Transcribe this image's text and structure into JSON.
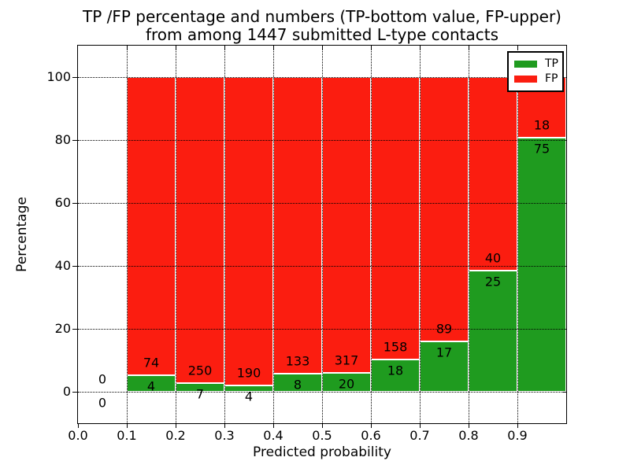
{
  "figure": {
    "title_line1": "TP /FP percentage and numbers (TP-bottom value, FP-upper)",
    "title_line2": "from among 1447 submitted L-type contacts",
    "xlabel": "Predicted probability",
    "ylabel": "Percentage"
  },
  "legend": {
    "position": "upper right",
    "items": [
      {
        "label": "TP",
        "color": "#1f9b1f"
      },
      {
        "label": "FP",
        "color": "#fb1d10"
      }
    ]
  },
  "chart_data": {
    "type": "bar",
    "stacked": true,
    "normalized_to_percent": true,
    "title": "TP /FP percentage and numbers (TP-bottom value, FP-upper) from among 1447 submitted L-type contacts",
    "xlabel": "Predicted probability",
    "ylabel": "Percentage",
    "total_contacts": 1447,
    "xlim": [
      0.0,
      1.0
    ],
    "ylim": [
      -10,
      110
    ],
    "grid": true,
    "grid_style": "dotted",
    "legend_position": "upper right",
    "series": [
      {
        "name": "TP",
        "color": "#1f9b1f",
        "position": "bottom"
      },
      {
        "name": "FP",
        "color": "#fb1d10",
        "position": "top"
      }
    ],
    "xticks": [
      {
        "v": 0.0,
        "label": "0.0"
      },
      {
        "v": 0.1,
        "label": "0.1"
      },
      {
        "v": 0.2,
        "label": "0.2"
      },
      {
        "v": 0.3,
        "label": "0.3"
      },
      {
        "v": 0.4,
        "label": "0.4"
      },
      {
        "v": 0.5,
        "label": "0.5"
      },
      {
        "v": 0.6,
        "label": "0.6"
      },
      {
        "v": 0.7,
        "label": "0.7"
      },
      {
        "v": 0.8,
        "label": "0.8"
      },
      {
        "v": 0.9,
        "label": "0.9"
      }
    ],
    "yticks": [
      {
        "v": 0,
        "label": "0"
      },
      {
        "v": 20,
        "label": "20"
      },
      {
        "v": 40,
        "label": "40"
      },
      {
        "v": 60,
        "label": "60"
      },
      {
        "v": 80,
        "label": "80"
      },
      {
        "v": 100,
        "label": "100"
      }
    ],
    "bins": [
      {
        "x0": 0.0,
        "x1": 0.1,
        "tp": 0,
        "fp": 0,
        "tp_pct": 0.0
      },
      {
        "x0": 0.1,
        "x1": 0.2,
        "tp": 4,
        "fp": 74,
        "tp_pct": 5.1
      },
      {
        "x0": 0.2,
        "x1": 0.3,
        "tp": 7,
        "fp": 250,
        "tp_pct": 2.7
      },
      {
        "x0": 0.3,
        "x1": 0.4,
        "tp": 4,
        "fp": 190,
        "tp_pct": 2.1
      },
      {
        "x0": 0.4,
        "x1": 0.5,
        "tp": 8,
        "fp": 133,
        "tp_pct": 5.7
      },
      {
        "x0": 0.5,
        "x1": 0.6,
        "tp": 20,
        "fp": 317,
        "tp_pct": 5.9
      },
      {
        "x0": 0.6,
        "x1": 0.7,
        "tp": 18,
        "fp": 158,
        "tp_pct": 10.2
      },
      {
        "x0": 0.7,
        "x1": 0.8,
        "tp": 17,
        "fp": 89,
        "tp_pct": 16.0
      },
      {
        "x0": 0.8,
        "x1": 0.9,
        "tp": 25,
        "fp": 40,
        "tp_pct": 38.5
      },
      {
        "x0": 0.9,
        "x1": 1.0,
        "tp": 75,
        "fp": 18,
        "tp_pct": 80.6
      }
    ]
  }
}
